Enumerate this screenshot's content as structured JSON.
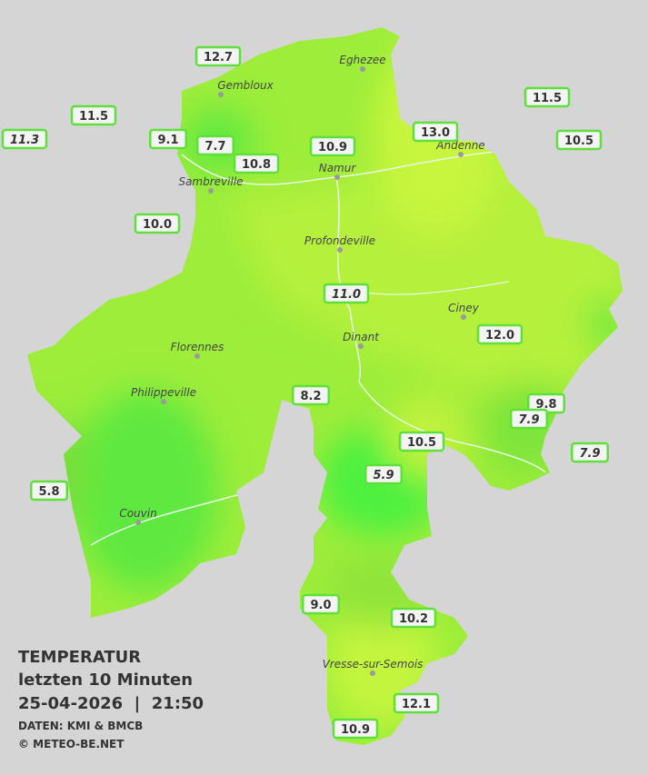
{
  "legend": {
    "title": "TEMPERATUR",
    "period": "letzten 10 Minuten",
    "datetime": "25-04-2026  |  21:50",
    "source": "DATEN: KMI & BMCB",
    "copyright": "© METEO-BE.NET"
  },
  "cities": [
    "Eghezee",
    "Gembloux",
    "Andenne",
    "Namur",
    "Sambreville",
    "Profondeville",
    "Ciney",
    "Florennes",
    "Dinant",
    "Philippeville",
    "Couvin",
    "Vresse-sur-Semois"
  ],
  "stations": [
    {
      "text": "12.7"
    },
    {
      "text": "11.5"
    },
    {
      "text": "11.3",
      "italic": true
    },
    {
      "text": "9.1"
    },
    {
      "text": "7.7"
    },
    {
      "text": "10.8"
    },
    {
      "text": "10.9"
    },
    {
      "text": "13.0"
    },
    {
      "text": "11.5"
    },
    {
      "text": "10.5"
    },
    {
      "text": "10.0"
    },
    {
      "text": "11.0",
      "italic": true
    },
    {
      "text": "12.0"
    },
    {
      "text": "8.2"
    },
    {
      "text": "9.8"
    },
    {
      "text": "7.9",
      "italic": true
    },
    {
      "text": "7.9",
      "italic": true
    },
    {
      "text": "10.5"
    },
    {
      "text": "5.9",
      "italic": true
    },
    {
      "text": "5.8"
    },
    {
      "text": "9.0"
    },
    {
      "text": "10.2"
    },
    {
      "text": "12.1"
    },
    {
      "text": "10.9"
    }
  ]
}
